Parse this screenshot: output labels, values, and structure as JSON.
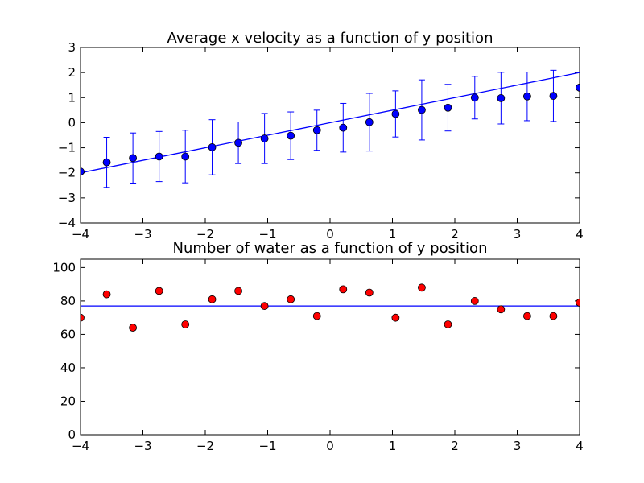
{
  "chart_data": [
    {
      "type": "scatter",
      "title": "Average x velocity as a function of y position",
      "xlabel": "",
      "ylabel": "",
      "xlim": [
        -4,
        4
      ],
      "ylim": [
        -4,
        3
      ],
      "xticks": [
        -4,
        -3,
        -2,
        -1,
        0,
        1,
        2,
        3,
        4
      ],
      "yticks": [
        -4,
        -3,
        -2,
        -1,
        0,
        1,
        2,
        3
      ],
      "grid": false,
      "points": {
        "marker_color": "#0000ff",
        "x": [
          -4.0,
          -3.58,
          -3.16,
          -2.74,
          -2.32,
          -1.89,
          -1.47,
          -1.05,
          -0.63,
          -0.21,
          0.21,
          0.63,
          1.05,
          1.47,
          1.89,
          2.32,
          2.74,
          3.16,
          3.58,
          4.0
        ],
        "y": [
          -1.95,
          -1.58,
          -1.41,
          -1.35,
          -1.35,
          -0.98,
          -0.8,
          -0.63,
          -0.52,
          -0.3,
          -0.2,
          0.02,
          0.35,
          0.51,
          0.6,
          1.0,
          0.98,
          1.05,
          1.07,
          1.4
        ],
        "err": [
          null,
          1.0,
          1.0,
          1.0,
          1.05,
          1.1,
          0.83,
          1.0,
          0.95,
          0.8,
          0.97,
          1.15,
          0.92,
          1.2,
          0.93,
          0.85,
          1.03,
          0.97,
          1.02,
          null
        ]
      },
      "line": {
        "color": "#0000ff",
        "x": [
          -4,
          4
        ],
        "y": [
          -2,
          2
        ]
      }
    },
    {
      "type": "scatter",
      "title": "Number of water as a function of y position",
      "xlabel": "",
      "ylabel": "",
      "xlim": [
        -4,
        4
      ],
      "ylim": [
        0,
        105
      ],
      "xticks": [
        -4,
        -3,
        -2,
        -1,
        0,
        1,
        2,
        3,
        4
      ],
      "yticks": [
        0,
        20,
        40,
        60,
        80,
        100
      ],
      "grid": false,
      "points": {
        "marker_color": "#ff0000",
        "x": [
          -4.0,
          -3.58,
          -3.16,
          -2.74,
          -2.32,
          -1.89,
          -1.47,
          -1.05,
          -0.63,
          -0.21,
          0.21,
          0.63,
          1.05,
          1.47,
          1.89,
          2.32,
          2.74,
          3.16,
          3.58,
          4.0
        ],
        "y": [
          70,
          84,
          64,
          86,
          66,
          81,
          86,
          77,
          81,
          71,
          87,
          85,
          70,
          88,
          66,
          80,
          75,
          71,
          71,
          79
        ]
      },
      "line": {
        "color": "#0000ff",
        "x": [
          -4,
          4
        ],
        "y": [
          77,
          77
        ]
      }
    }
  ]
}
